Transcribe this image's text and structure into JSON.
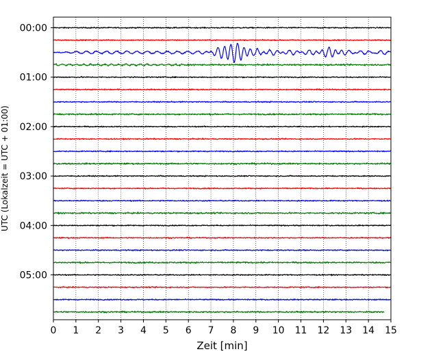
{
  "chart_data": {
    "type": "line",
    "xlabel": "Zeit  [min]",
    "ylabel": "UTC (Lokalzeit = UTC + 01:00)",
    "xlim": [
      0,
      15
    ],
    "x_ticks": [
      0,
      1,
      2,
      3,
      4,
      5,
      6,
      7,
      8,
      9,
      10,
      11,
      12,
      13,
      14,
      15
    ],
    "y_ticks": [
      {
        "label": "00:00",
        "trace": 0
      },
      {
        "label": "01:00",
        "trace": 4
      },
      {
        "label": "02:00",
        "trace": 8
      },
      {
        "label": "03:00",
        "trace": 12
      },
      {
        "label": "04:00",
        "trace": 16
      },
      {
        "label": "05:00",
        "trace": 20
      }
    ],
    "grid": "vertical-dotted",
    "trace_count": 24,
    "trace_interval_minutes": 15,
    "trace_colors": [
      "#000000",
      "#ff0000",
      "#0000ff",
      "#008000"
    ],
    "event": {
      "trace": 2,
      "start_min": 5.5,
      "peak_min": 8.0,
      "secondary_min": 12.3,
      "end_min": 15
    },
    "last_trace_end_min": 14.7
  }
}
